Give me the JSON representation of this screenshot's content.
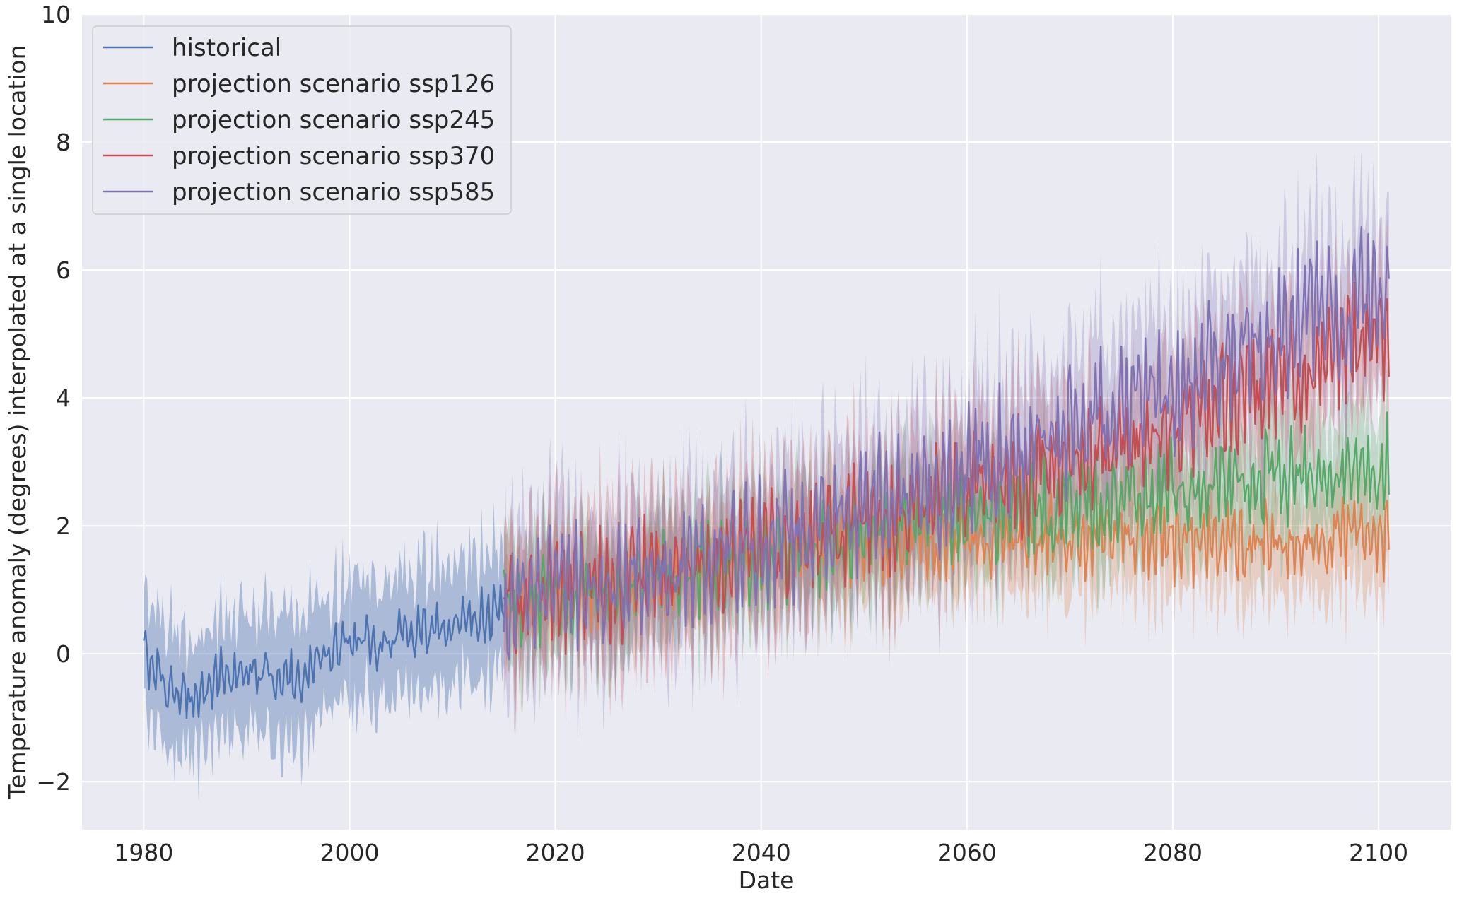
{
  "chart_data": {
    "type": "line",
    "title": "",
    "xlabel": "Date",
    "ylabel": "Temperature anomaly (degrees) interpolated at a single location",
    "xlim": [
      1974,
      2107
    ],
    "ylim": [
      -2.75,
      10
    ],
    "x_ticks": [
      1980,
      2000,
      2020,
      2040,
      2060,
      2080,
      2100
    ],
    "y_ticks": [
      -2,
      0,
      2,
      4,
      6,
      8,
      10
    ],
    "x_tick_labels": [
      "1980",
      "2000",
      "2020",
      "2040",
      "2060",
      "2080",
      "2100"
    ],
    "y_tick_labels": [
      "−2",
      "0",
      "2",
      "4",
      "6",
      "8",
      "10"
    ],
    "grid": true,
    "legend_position": "top-left",
    "series": [
      {
        "name": "historical",
        "color": "#4c72b0",
        "band": 0.95,
        "x": [
          1980,
          1982.5,
          1985,
          1987.5,
          1990,
          1992.5,
          1995,
          1997.5,
          2000,
          2002.5,
          2005,
          2007.5,
          2010,
          2012.5,
          2015
        ],
        "y": [
          0.0,
          -0.6,
          -0.7,
          -0.35,
          -0.2,
          -0.3,
          -0.4,
          -0.1,
          0.15,
          0.2,
          0.3,
          0.35,
          0.4,
          0.55,
          0.75
        ]
      },
      {
        "name": "projection scenario ssp126",
        "color": "#dd8452",
        "band": 0.8,
        "x": [
          2015,
          2020,
          2025,
          2030,
          2035,
          2040,
          2045,
          2050,
          2055,
          2060,
          2065,
          2070,
          2075,
          2080,
          2085,
          2090,
          2095,
          2101
        ],
        "y": [
          0.8,
          0.9,
          1.0,
          1.2,
          1.3,
          1.5,
          1.6,
          1.7,
          1.75,
          1.8,
          1.8,
          1.85,
          1.8,
          1.75,
          1.7,
          1.8,
          1.85,
          1.8
        ]
      },
      {
        "name": "projection scenario ssp245",
        "color": "#55a868",
        "band": 0.9,
        "x": [
          2015,
          2020,
          2025,
          2030,
          2035,
          2040,
          2045,
          2050,
          2055,
          2060,
          2065,
          2070,
          2075,
          2080,
          2085,
          2090,
          2095,
          2101
        ],
        "y": [
          0.8,
          0.9,
          1.05,
          1.2,
          1.35,
          1.5,
          1.65,
          1.8,
          2.0,
          2.1,
          2.2,
          2.3,
          2.4,
          2.5,
          2.6,
          2.75,
          2.85,
          2.95
        ]
      },
      {
        "name": "projection scenario ssp370",
        "color": "#c44e52",
        "band": 1.0,
        "x": [
          2015,
          2020,
          2025,
          2030,
          2035,
          2040,
          2045,
          2050,
          2055,
          2060,
          2065,
          2070,
          2075,
          2080,
          2085,
          2090,
          2095,
          2101
        ],
        "y": [
          0.8,
          0.95,
          1.1,
          1.25,
          1.4,
          1.6,
          1.8,
          2.0,
          2.25,
          2.5,
          2.75,
          3.0,
          3.3,
          3.6,
          3.95,
          4.3,
          4.65,
          5.0
        ]
      },
      {
        "name": "projection scenario ssp585",
        "color": "#8172b3",
        "band": 1.1,
        "x": [
          2015,
          2020,
          2025,
          2030,
          2035,
          2040,
          2045,
          2050,
          2055,
          2060,
          2065,
          2070,
          2075,
          2080,
          2085,
          2090,
          2095,
          2101
        ],
        "y": [
          0.85,
          1.0,
          1.15,
          1.3,
          1.5,
          1.75,
          2.0,
          2.25,
          2.55,
          2.85,
          3.15,
          3.5,
          3.85,
          4.2,
          4.6,
          5.0,
          5.35,
          5.75
        ]
      }
    ]
  }
}
